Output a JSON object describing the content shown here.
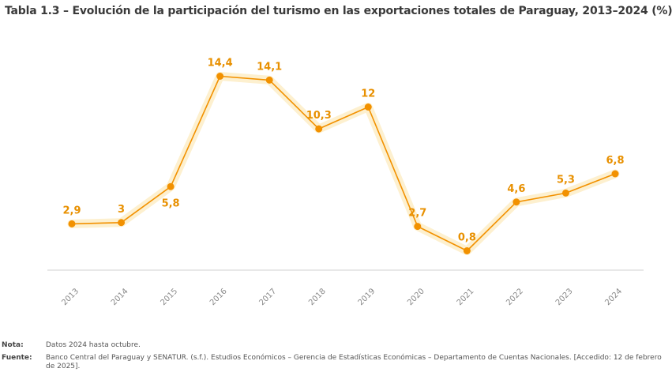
{
  "title": "Tabla 1.3 – Evolución de la participación del turismo en las exportaciones totales de Paraguay, 2013–2024 (%)",
  "notes": {
    "nota_label": "Nota:",
    "nota_text": "Datos 2024 hasta octubre.",
    "fuente_label": "Fuente:",
    "fuente_text": "Banco Central del Paraguay y SENATUR. (s.f.). Estudios Económicos – Gerencia de Estadísticas Económicas – Departamento de Cuentas Nacionales. [Accedido: 12 de febrero de 2025]."
  },
  "colors": {
    "line": "#f29100",
    "glow": "#fdf0cf",
    "label": "#e89000",
    "axis": "#d0d0d0",
    "tick_text": "#8a8a8a"
  },
  "chart_data": {
    "type": "line",
    "x": [
      "2013",
      "2014",
      "2015",
      "2016",
      "2017",
      "2018",
      "2019",
      "2020",
      "2021",
      "2022",
      "2023",
      "2024"
    ],
    "series": [
      {
        "values": [
          2.9,
          3,
          5.8,
          14.4,
          14.1,
          10.3,
          12,
          2.7,
          0.8,
          4.6,
          5.3,
          6.8
        ],
        "data_labels": [
          "2,9",
          "3",
          "5,8",
          "14,4",
          "14,1",
          "10,3",
          "12",
          "2,7",
          "0,8",
          "4,6",
          "5,3",
          "6,8"
        ]
      }
    ],
    "xlabel": "",
    "ylabel": "",
    "grid": false,
    "legend": "none"
  }
}
